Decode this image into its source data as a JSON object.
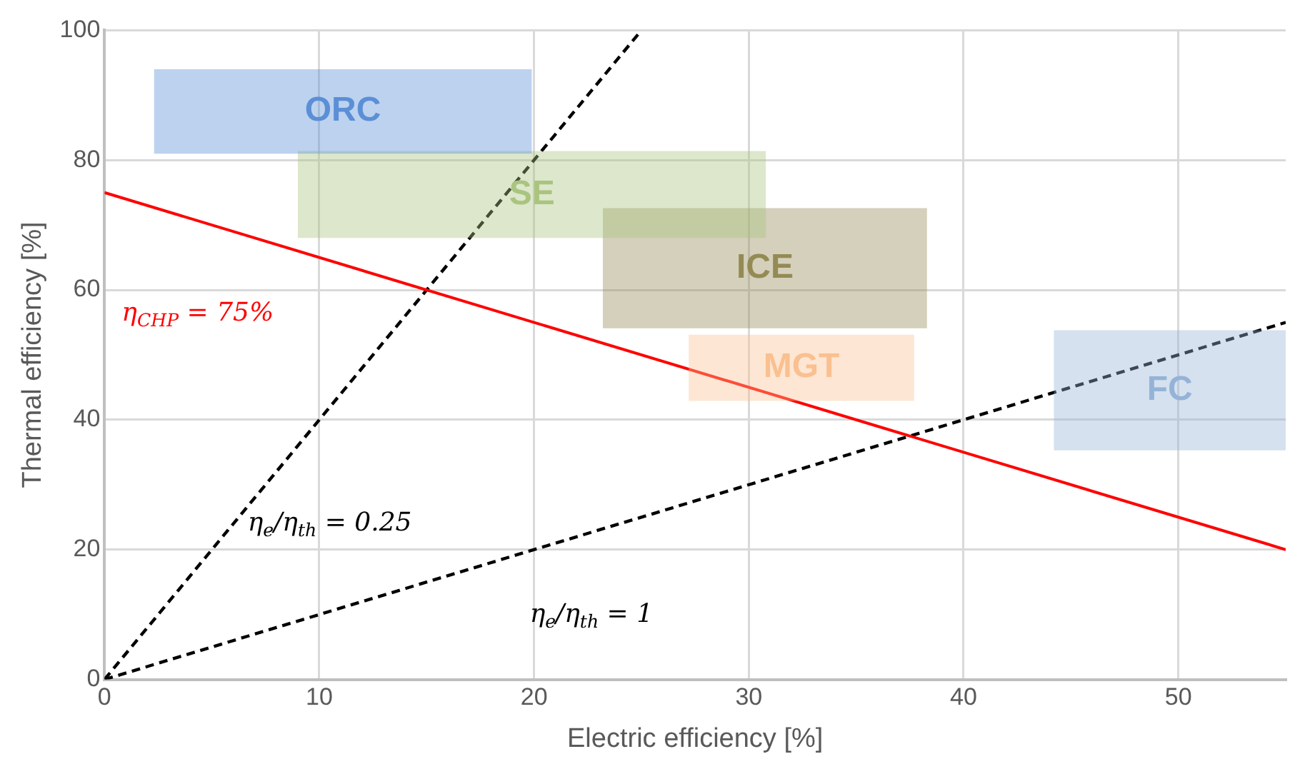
{
  "chart_data": {
    "type": "line",
    "xlabel": "Electric efficiency [%]",
    "ylabel": "Thermal efficiency [%]",
    "xlim": [
      0,
      55
    ],
    "xticks": [
      0,
      10,
      20,
      30,
      40,
      50
    ],
    "ylim": [
      0,
      100
    ],
    "yticks": [
      0,
      20,
      40,
      60,
      80,
      100
    ],
    "grid": true,
    "marker": "none",
    "series": [
      {
        "name": "ORC",
        "type": "area",
        "color": "#5b8fd6",
        "x": [
          2.3,
          19.9
        ],
        "values": [
          null,
          null
        ],
        "upper": [
          94,
          94
        ],
        "lower": [
          81,
          81
        ]
      },
      {
        "name": "SE",
        "type": "area",
        "color": "#a9c47f",
        "x": [
          9,
          30.8
        ],
        "values": [
          null,
          null
        ],
        "upper": [
          81.4,
          81.4
        ],
        "lower": [
          68,
          68
        ]
      },
      {
        "name": "ICE",
        "type": "area",
        "color": "#948a54",
        "x": [
          23.2,
          38.3
        ],
        "values": [
          null,
          null
        ],
        "upper": [
          72.6,
          72.6
        ],
        "lower": [
          54.1,
          54.1
        ]
      },
      {
        "name": "MGT",
        "type": "area",
        "color": "#fac090",
        "x": [
          27.2,
          37.7
        ],
        "values": [
          null,
          null
        ],
        "upper": [
          53.1,
          53.1
        ],
        "lower": [
          42.9,
          42.9
        ]
      },
      {
        "name": "FC",
        "type": "area",
        "color": "#95b3d7",
        "x": [
          44.2,
          55
        ],
        "values": [
          null,
          null
        ],
        "upper": [
          53.8,
          53.8
        ],
        "lower": [
          35.3,
          35.3
        ]
      },
      {
        "name": "η$_{CHP}$ = 75%",
        "type": "line",
        "color": "#ff0000",
        "line_style": "solid",
        "x": [
          0,
          55
        ],
        "values": [
          75,
          20
        ]
      },
      {
        "name": "η$_{e}$/η$_{th}$ = 0.25",
        "type": "line",
        "color": "#000000",
        "line_style": "dashed",
        "x": [
          0,
          25
        ],
        "values": [
          0,
          100
        ]
      },
      {
        "name": "η$_{e}$/η$_{th}$ = 1",
        "type": "line",
        "color": "#000000",
        "line_style": "dashed",
        "x": [
          0,
          55
        ],
        "values": [
          0,
          55
        ]
      }
    ]
  }
}
